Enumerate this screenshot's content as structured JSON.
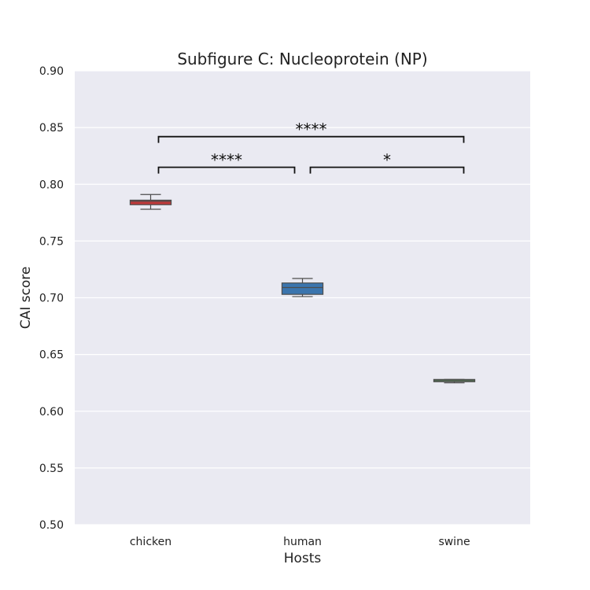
{
  "chart_data": {
    "type": "box",
    "title": "Subfigure C: Nucleoprotein (NP)",
    "xlabel": "Hosts",
    "ylabel": "CAI score",
    "ylim": [
      0.5,
      0.9
    ],
    "yticks": [
      "0.50",
      "0.55",
      "0.60",
      "0.65",
      "0.70",
      "0.75",
      "0.80",
      "0.85",
      "0.90"
    ],
    "grid": true,
    "categories": [
      "chicken",
      "human",
      "swine"
    ],
    "boxes": [
      {
        "category": "chicken",
        "whisker_low": 0.778,
        "q1": 0.782,
        "median": 0.785,
        "q3": 0.786,
        "whisker_high": 0.791,
        "color": "#c0393a"
      },
      {
        "category": "human",
        "whisker_low": 0.701,
        "q1": 0.703,
        "median": 0.709,
        "q3": 0.713,
        "whisker_high": 0.717,
        "color": "#3b75ae"
      },
      {
        "category": "swine",
        "whisker_low": 0.625,
        "q1": 0.626,
        "median": 0.627,
        "q3": 0.628,
        "whisker_high": 0.628,
        "color": "#5a9e5a"
      }
    ],
    "annotations": [
      {
        "from": "chicken",
        "to": "human",
        "y": 0.815,
        "label": "****"
      },
      {
        "from": "human",
        "to": "swine",
        "y": 0.815,
        "label": "*"
      },
      {
        "from": "chicken",
        "to": "swine",
        "y": 0.842,
        "label": "****"
      }
    ]
  }
}
